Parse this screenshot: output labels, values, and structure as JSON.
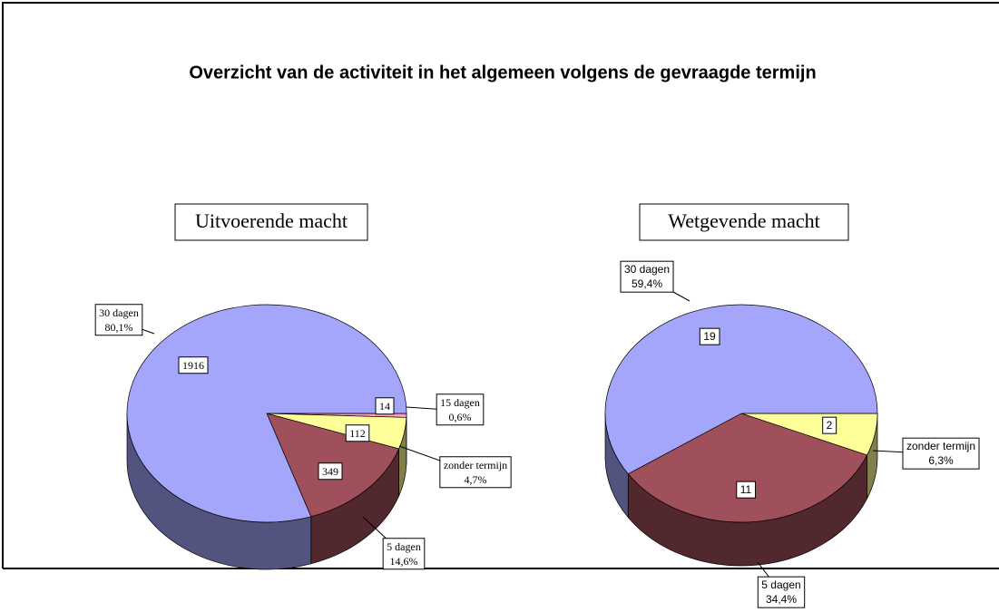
{
  "title": "Overzicht van de activiteit in het algemeen volgens de  gevraagde termijn",
  "chart_data": [
    {
      "type": "pie",
      "title": "Uitvoerende macht",
      "categories": [
        "15 dagen",
        "zonder termijn",
        "5 dagen",
        "30 dagen"
      ],
      "values": [
        14,
        112,
        349,
        1916
      ],
      "percent_labels": [
        "0,6%",
        "4,7%",
        "14,6%",
        "80,1%"
      ],
      "colors": [
        "#ff99cc",
        "#ffff99",
        "#a0505a",
        "#a3a6fb"
      ]
    },
    {
      "type": "pie",
      "title": "Wetgevende macht",
      "categories": [
        "zonder termijn",
        "5 dagen",
        "30 dagen"
      ],
      "values": [
        2,
        11,
        19
      ],
      "percent_labels": [
        "6,3%",
        "34,4%",
        "59,4%"
      ],
      "colors": [
        "#ffff99",
        "#a0505a",
        "#a3a6fb"
      ]
    }
  ]
}
